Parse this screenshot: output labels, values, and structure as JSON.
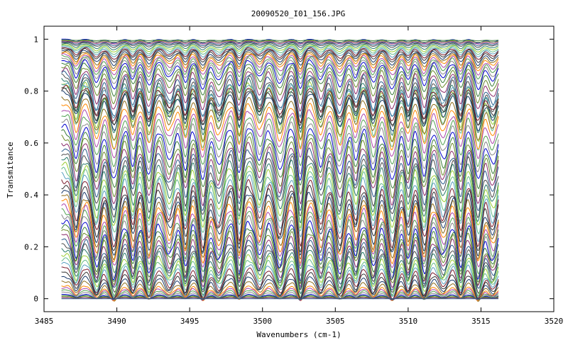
{
  "chart_data": {
    "type": "line",
    "title": "20090520_I01_156.JPG",
    "xlabel": "Wavenumbers (cm-1)",
    "ylabel": "Transmitance",
    "xlim": [
      3485,
      3520
    ],
    "ylim": [
      -0.05,
      1.05
    ],
    "x_range": [
      3486.2,
      3516.2
    ],
    "x_ticks": [
      "3485",
      "3490",
      "3495",
      "3500",
      "3505",
      "3510",
      "3515",
      "3520"
    ],
    "y_ticks": [
      "0",
      "0.2",
      "0.4",
      "0.6",
      "0.8",
      "1"
    ],
    "grid": false,
    "legend": "none",
    "absorption_lines_cm1": [
      3487.2,
      3488.6,
      3489.8,
      3491.1,
      3492.2,
      3493.6,
      3494.7,
      3495.9,
      3497.0,
      3498.4,
      3499.8,
      3501.2,
      3502.6,
      3504.0,
      3505.3,
      3506.4,
      3507.6,
      3508.9,
      3510.0,
      3511.1,
      3512.4,
      3513.6,
      3514.8,
      3515.8
    ],
    "series_baselines": [
      1.0,
      0.998,
      0.996,
      0.994,
      0.992,
      0.99,
      0.987,
      0.984,
      0.981,
      0.978,
      0.975,
      0.972,
      0.968,
      0.964,
      0.96,
      0.955,
      0.95,
      0.944,
      0.938,
      0.93,
      0.92,
      0.91,
      0.9,
      0.89,
      0.88,
      0.87,
      0.86,
      0.85,
      0.84,
      0.83,
      0.82,
      0.8,
      0.78,
      0.76,
      0.74,
      0.72,
      0.7,
      0.68,
      0.66,
      0.64,
      0.62,
      0.6,
      0.58,
      0.56,
      0.54,
      0.52,
      0.5,
      0.48,
      0.46,
      0.44,
      0.42,
      0.4,
      0.38,
      0.36,
      0.34,
      0.32,
      0.3,
      0.28,
      0.26,
      0.24,
      0.22,
      0.2,
      0.18,
      0.16,
      0.14,
      0.12,
      0.1,
      0.08,
      0.06,
      0.05,
      0.04,
      0.03,
      0.02,
      0.015,
      0.01,
      0.005,
      0.0
    ],
    "series_colors": [
      "#0000cc",
      "#3a7d3a",
      "#6a8a2a",
      "#8a2a6a",
      "#2a5a8a",
      "#4a4a4a",
      "#2a7a6a",
      "#9acd32",
      "#66bb88",
      "#5aa0c0",
      "#7a1a2a",
      "#333333",
      "#1a3a6a",
      "#8b6b1a",
      "#ff8800",
      "#aa44aa",
      "#50a050",
      "#888888"
    ]
  }
}
